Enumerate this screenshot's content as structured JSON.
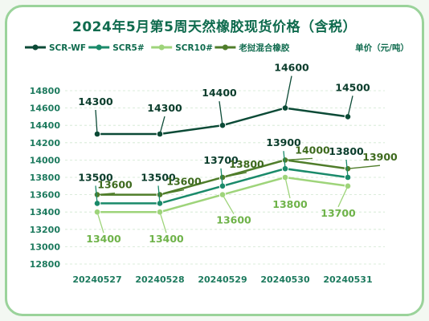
{
  "chart_data": {
    "type": "line",
    "title": "2024年5月第5周天然橡胶现货价格（含税）",
    "unit_label": "单价（元/吨）",
    "categories": [
      "20240527",
      "20240528",
      "20240529",
      "20240530",
      "20240531"
    ],
    "ylim": [
      12800,
      14800
    ],
    "yticks": [
      12800,
      13000,
      13200,
      13400,
      13600,
      13800,
      14000,
      14200,
      14400,
      14600,
      14800
    ],
    "series": [
      {
        "name": "SCR-WF",
        "values": [
          14300,
          14300,
          14400,
          14600,
          14500
        ],
        "color": "#0b4a36"
      },
      {
        "name": "SCR5#",
        "values": [
          13500,
          13500,
          13700,
          13900,
          13800
        ],
        "color": "#1a8a6a"
      },
      {
        "name": "SCR10#",
        "values": [
          13400,
          13400,
          13600,
          13800,
          13700
        ],
        "color": "#9ed47a"
      },
      {
        "name": "老挝混合橡胶",
        "values": [
          13600,
          13600,
          13800,
          14000,
          13900
        ],
        "color": "#4f7d2a"
      }
    ],
    "grid": true,
    "legend_position": "top"
  }
}
